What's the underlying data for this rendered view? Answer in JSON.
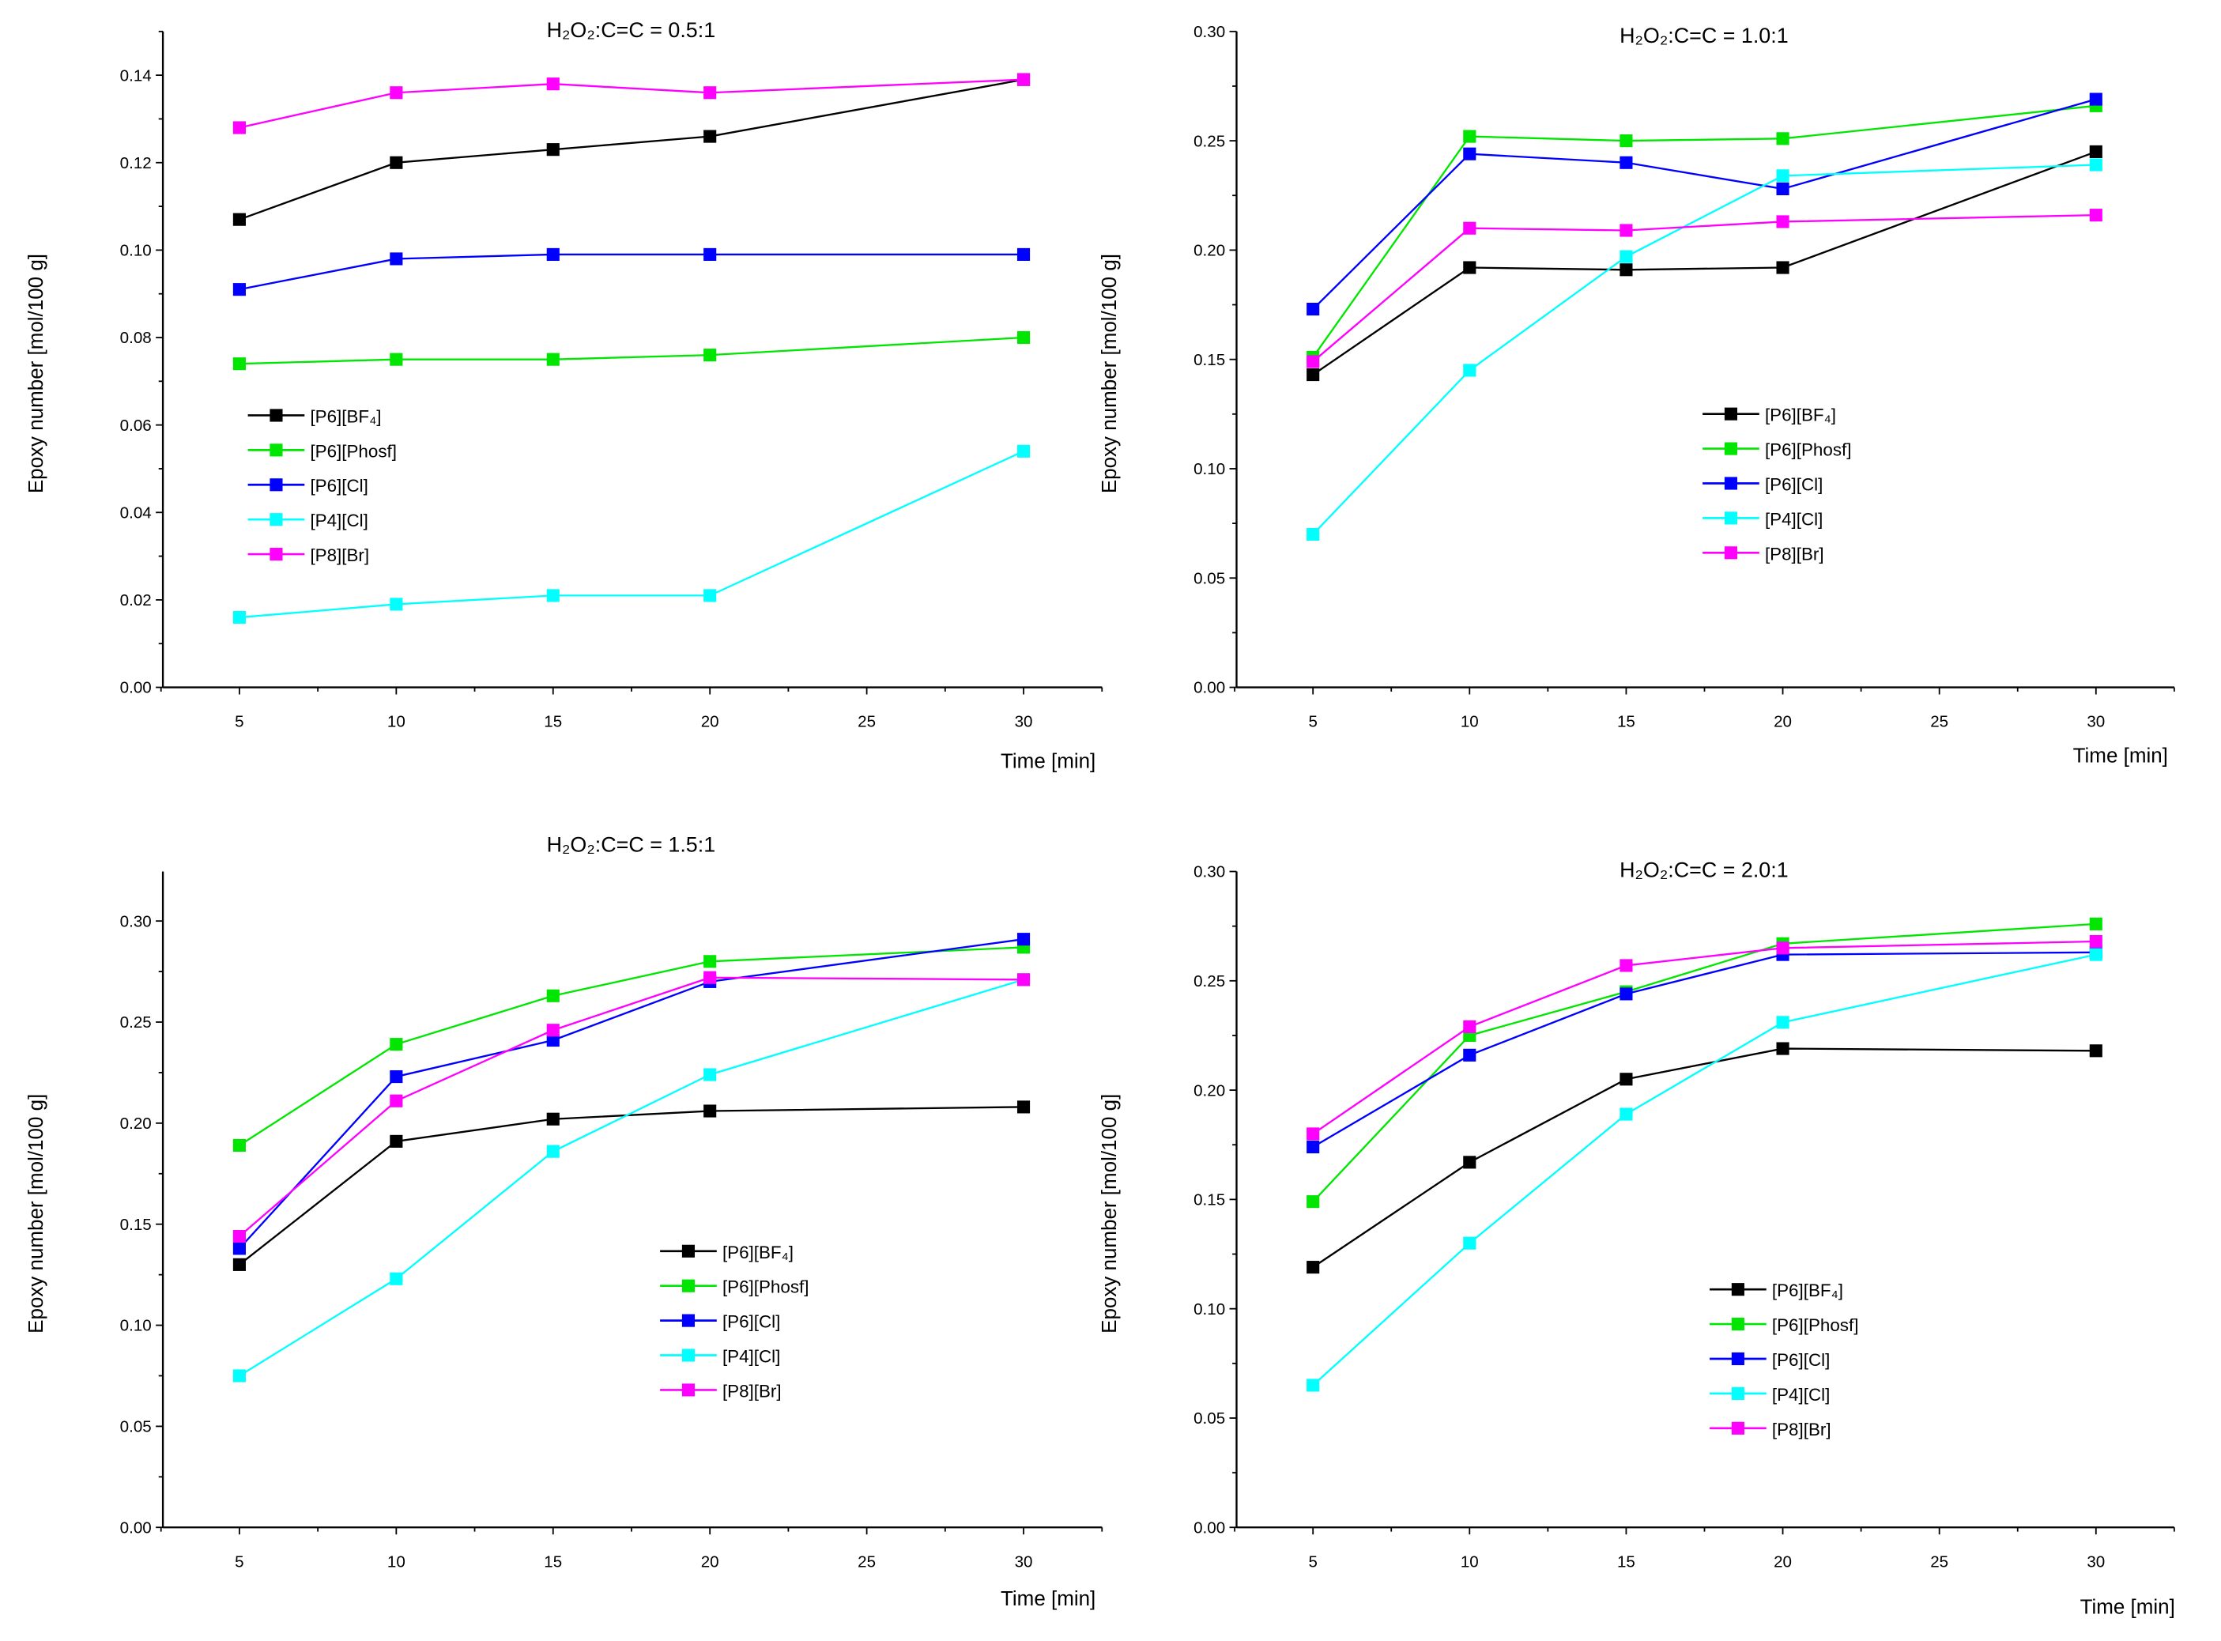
{
  "chart_data": [
    {
      "type": "line",
      "title": "H₂O₂:C=C = 0.5:1",
      "xlabel": "Time [min]",
      "ylabel": "Epoxy number [mol/100 g]",
      "x": [
        5,
        10,
        15,
        20,
        30
      ],
      "xlim": [
        2.56,
        32.5
      ],
      "ylim": [
        0,
        0.15
      ],
      "xticks": [
        5,
        10,
        15,
        20,
        25,
        30
      ],
      "yticks": [
        "0.00",
        "0.02",
        "0.04",
        "0.06",
        "0.08",
        "0.10",
        "0.12",
        "0.14"
      ],
      "legend_position": "center-left",
      "series": [
        {
          "name": "[P6][BF₄]",
          "color": "#000000",
          "values": [
            0.107,
            0.12,
            0.123,
            0.126,
            0.139
          ]
        },
        {
          "name": "[P6][Phosf]",
          "color": "#00e600",
          "values": [
            0.074,
            0.075,
            0.075,
            0.076,
            0.08
          ]
        },
        {
          "name": "[P6][Cl]",
          "color": "#0000ff",
          "values": [
            0.091,
            0.098,
            0.099,
            0.099,
            0.099
          ]
        },
        {
          "name": "[P4][Cl]",
          "color": "#00ffff",
          "values": [
            0.016,
            0.019,
            0.021,
            0.021,
            0.054
          ]
        },
        {
          "name": "[P8][Br]",
          "color": "#ff00ff",
          "values": [
            0.128,
            0.136,
            0.138,
            0.136,
            0.139
          ]
        }
      ]
    },
    {
      "type": "line",
      "title": "H₂O₂:C=C = 1.0:1",
      "xlabel": "Time [min]",
      "ylabel": "Epoxy number [mol/100 g]",
      "x": [
        5,
        10,
        15,
        20,
        30
      ],
      "xlim": [
        2.56,
        32.5
      ],
      "ylim": [
        0,
        0.3
      ],
      "xticks": [
        5,
        10,
        15,
        20,
        25,
        30
      ],
      "yticks": [
        "0.00",
        "0.05",
        "0.10",
        "0.15",
        "0.20",
        "0.25",
        "0.30"
      ],
      "legend_position": "center-right",
      "series": [
        {
          "name": "[P6][BF₄]",
          "color": "#000000",
          "values": [
            0.143,
            0.192,
            0.191,
            0.192,
            0.245
          ]
        },
        {
          "name": "[P6][Phosf]",
          "color": "#00e600",
          "values": [
            0.151,
            0.252,
            0.25,
            0.251,
            0.266
          ]
        },
        {
          "name": "[P6][Cl]",
          "color": "#0000ff",
          "values": [
            0.173,
            0.244,
            0.24,
            0.228,
            0.269
          ]
        },
        {
          "name": "[P4][Cl]",
          "color": "#00ffff",
          "values": [
            0.07,
            0.145,
            0.197,
            0.234,
            0.239
          ]
        },
        {
          "name": "[P8][Br]",
          "color": "#ff00ff",
          "values": [
            0.149,
            0.21,
            0.209,
            0.213,
            0.216
          ]
        }
      ]
    },
    {
      "type": "line",
      "title": "H₂O₂:C=C = 1.5:1",
      "xlabel": "Time [min]",
      "ylabel": "Epoxy number [mol/100 g]",
      "x": [
        5,
        10,
        15,
        20,
        30
      ],
      "xlim": [
        2.56,
        32.5
      ],
      "ylim": [
        0,
        0.3245
      ],
      "xticks": [
        5,
        10,
        15,
        20,
        25,
        30
      ],
      "yticks": [
        "0.00",
        "0.05",
        "0.10",
        "0.15",
        "0.20",
        "0.25",
        "0.30"
      ],
      "legend_position": "center",
      "series": [
        {
          "name": "[P6][BF₄]",
          "color": "#000000",
          "values": [
            0.13,
            0.191,
            0.202,
            0.206,
            0.208
          ]
        },
        {
          "name": "[P6][Phosf]",
          "color": "#00e600",
          "values": [
            0.189,
            0.239,
            0.263,
            0.28,
            0.287
          ]
        },
        {
          "name": "[P6][Cl]",
          "color": "#0000ff",
          "values": [
            0.138,
            0.223,
            0.241,
            0.27,
            0.291
          ]
        },
        {
          "name": "[P4][Cl]",
          "color": "#00ffff",
          "values": [
            0.075,
            0.123,
            0.186,
            0.224,
            0.271
          ]
        },
        {
          "name": "[P8][Br]",
          "color": "#ff00ff",
          "values": [
            0.144,
            0.211,
            0.246,
            0.272,
            0.271
          ]
        }
      ]
    },
    {
      "type": "line",
      "title": "H₂O₂:C=C = 2.0:1",
      "xlabel": "Time [min]",
      "ylabel": "Epoxy number [mol/100 g]",
      "x": [
        5,
        10,
        15,
        20,
        30
      ],
      "xlim": [
        2.56,
        32.5
      ],
      "ylim": [
        0,
        0.3
      ],
      "xticks": [
        5,
        10,
        15,
        20,
        25,
        30
      ],
      "yticks": [
        "0.00",
        "0.05",
        "0.10",
        "0.15",
        "0.20",
        "0.25",
        "0.30"
      ],
      "legend_position": "center-right",
      "series": [
        {
          "name": "[P6][BF₄]",
          "color": "#000000",
          "values": [
            0.119,
            0.167,
            0.205,
            0.219,
            0.218
          ]
        },
        {
          "name": "[P6][Phosf]",
          "color": "#00e600",
          "values": [
            0.149,
            0.225,
            0.245,
            0.267,
            0.276
          ]
        },
        {
          "name": "[P6][Cl]",
          "color": "#0000ff",
          "values": [
            0.174,
            0.216,
            0.244,
            0.262,
            0.263
          ]
        },
        {
          "name": "[P4][Cl]",
          "color": "#00ffff",
          "values": [
            0.065,
            0.13,
            0.189,
            0.231,
            0.262
          ]
        },
        {
          "name": "[P8][Br]",
          "color": "#ff00ff",
          "values": [
            0.18,
            0.229,
            0.257,
            0.265,
            0.268
          ]
        }
      ]
    }
  ]
}
